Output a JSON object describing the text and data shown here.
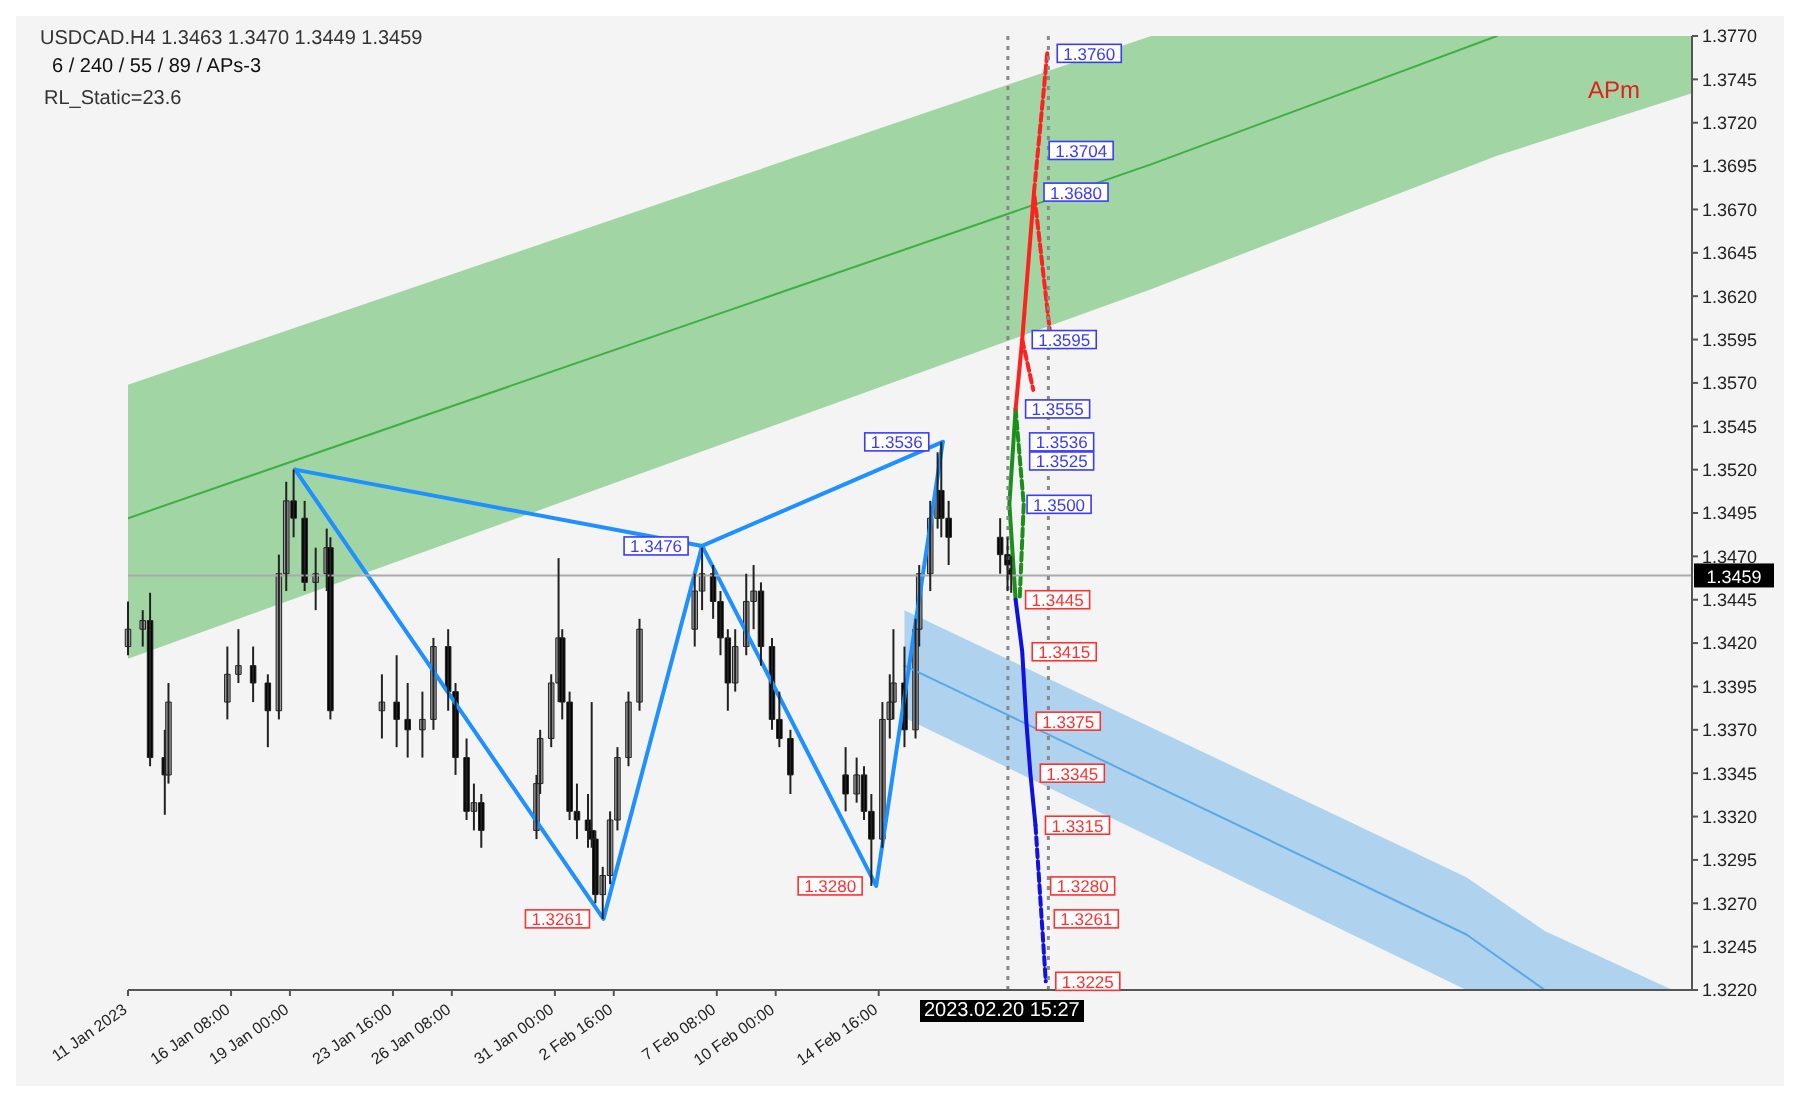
{
  "chart_data": {
    "type": "candlestick",
    "title": "USDCAD.H4  1.3463 1.3470 1.3449 1.3459",
    "subtitle": "6 / 240 / 55 / 89 / APs-3",
    "x": [
      "2023-01-11T16:00",
      "2023-01-12T08:00",
      "2023-01-12T16:00",
      "2023-01-13T08:00",
      "2023-01-13T12:00",
      "2023-01-16T04:00",
      "2023-01-16T16:00",
      "2023-01-17T08:00",
      "2023-01-18T00:00",
      "2023-01-18T12:00",
      "2023-01-18T20:00",
      "2023-01-19T04:00",
      "2023-01-19T16:00",
      "2023-01-20T04:00",
      "2023-01-20T16:00",
      "2023-01-20T20:00",
      "2023-01-23T04:00",
      "2023-01-23T20:00",
      "2023-01-24T08:00",
      "2023-01-25T00:00",
      "2023-01-25T12:00",
      "2023-01-26T04:00",
      "2023-01-26T12:00",
      "2023-01-27T00:00",
      "2023-01-27T08:00",
      "2023-01-27T16:00",
      "2023-01-30T04:00",
      "2023-01-30T08:00",
      "2023-01-30T20:00",
      "2023-01-31T04:00",
      "2023-01-31T08:00",
      "2023-01-31T16:00",
      "2023-02-01T00:00",
      "2023-02-01T12:00",
      "2023-02-01T16:00",
      "2023-02-01T20:00",
      "2023-02-02T04:00",
      "2023-02-02T12:00",
      "2023-02-02T20:00",
      "2023-02-03T08:00",
      "2023-02-03T20:00",
      "2023-02-06T08:00",
      "2023-02-06T16:00",
      "2023-02-07T04:00",
      "2023-02-07T12:00",
      "2023-02-07T20:00",
      "2023-02-08T04:00",
      "2023-02-08T16:00",
      "2023-02-09T00:00",
      "2023-02-09T08:00",
      "2023-02-09T20:00",
      "2023-02-10T04:00",
      "2023-02-10T16:00",
      "2023-02-13T04:00",
      "2023-02-13T16:00",
      "2023-02-14T00:00",
      "2023-02-14T08:00",
      "2023-02-14T20:00",
      "2023-02-15T04:00",
      "2023-02-15T08:00",
      "2023-02-15T20:00",
      "2023-02-16T08:00",
      "2023-02-16T12:00",
      "2023-02-17T00:00",
      "2023-02-17T08:00",
      "2023-02-17T12:00",
      "2023-02-17T20:00",
      "2023-02-20T04:00",
      "2023-02-20T12:00",
      "2023-02-20T16:00"
    ],
    "ohlc": [
      [
        1.3418,
        1.3444,
        1.3413,
        1.3428
      ],
      [
        1.3428,
        1.3439,
        1.3418,
        1.3433
      ],
      [
        1.3433,
        1.3449,
        1.3349,
        1.3354
      ],
      [
        1.3354,
        1.337,
        1.3321,
        1.3344
      ],
      [
        1.3344,
        1.3397,
        1.3339,
        1.3386
      ],
      [
        1.3386,
        1.3418,
        1.3376,
        1.3402
      ],
      [
        1.3402,
        1.3428,
        1.3397,
        1.3407
      ],
      [
        1.3407,
        1.3418,
        1.3386,
        1.3397
      ],
      [
        1.3397,
        1.3402,
        1.336,
        1.3381
      ],
      [
        1.3381,
        1.3471,
        1.3376,
        1.346
      ],
      [
        1.346,
        1.3513,
        1.345,
        1.3502
      ],
      [
        1.3502,
        1.352,
        1.3481,
        1.3492
      ],
      [
        1.3492,
        1.3502,
        1.345,
        1.3455
      ],
      [
        1.3455,
        1.3475,
        1.3439,
        1.346
      ],
      [
        1.346,
        1.3486,
        1.345,
        1.3475
      ],
      [
        1.3475,
        1.3481,
        1.3376,
        1.3381
      ],
      [
        1.3381,
        1.3402,
        1.3365,
        1.3386
      ],
      [
        1.3386,
        1.3413,
        1.336,
        1.3376
      ],
      [
        1.3376,
        1.3397,
        1.3354,
        1.337
      ],
      [
        1.337,
        1.3392,
        1.3354,
        1.3376
      ],
      [
        1.3376,
        1.3423,
        1.337,
        1.3418
      ],
      [
        1.3418,
        1.3428,
        1.3381,
        1.3392
      ],
      [
        1.3392,
        1.3397,
        1.3344,
        1.3354
      ],
      [
        1.3354,
        1.3365,
        1.3318,
        1.3323
      ],
      [
        1.3323,
        1.3339,
        1.3312,
        1.3328
      ],
      [
        1.3328,
        1.3333,
        1.3302,
        1.3312
      ],
      [
        1.3312,
        1.3344,
        1.3307,
        1.3339
      ],
      [
        1.3339,
        1.337,
        1.3333,
        1.3365
      ],
      [
        1.3365,
        1.3402,
        1.336,
        1.3397
      ],
      [
        1.3397,
        1.3469,
        1.3386,
        1.3423
      ],
      [
        1.3423,
        1.3428,
        1.3376,
        1.3386
      ],
      [
        1.3386,
        1.3392,
        1.3318,
        1.3323
      ],
      [
        1.3323,
        1.3339,
        1.3307,
        1.3318
      ],
      [
        1.3318,
        1.3333,
        1.3302,
        1.3312
      ],
      [
        1.3312,
        1.3386,
        1.3302,
        1.3307
      ],
      [
        1.3307,
        1.3312,
        1.327,
        1.3275
      ],
      [
        1.3275,
        1.3291,
        1.3261,
        1.3286
      ],
      [
        1.3286,
        1.3323,
        1.3281,
        1.3318
      ],
      [
        1.3318,
        1.336,
        1.3312,
        1.3354
      ],
      [
        1.3354,
        1.3392,
        1.3349,
        1.3386
      ],
      [
        1.3386,
        1.3434,
        1.3381,
        1.3428
      ],
      [
        1.3428,
        1.346,
        1.3418,
        1.345
      ],
      [
        1.345,
        1.3475,
        1.3439,
        1.346
      ],
      [
        1.346,
        1.3465,
        1.3434,
        1.3444
      ],
      [
        1.3444,
        1.345,
        1.3413,
        1.3423
      ],
      [
        1.3423,
        1.3428,
        1.3381,
        1.3397
      ],
      [
        1.3397,
        1.3428,
        1.3392,
        1.3418
      ],
      [
        1.3418,
        1.346,
        1.3413,
        1.3444
      ],
      [
        1.3444,
        1.3465,
        1.3428,
        1.345
      ],
      [
        1.345,
        1.3455,
        1.3407,
        1.3418
      ],
      [
        1.3418,
        1.3423,
        1.337,
        1.3376
      ],
      [
        1.3376,
        1.3392,
        1.336,
        1.3365
      ],
      [
        1.3365,
        1.337,
        1.3333,
        1.3344
      ],
      [
        1.3344,
        1.336,
        1.3323,
        1.3333
      ],
      [
        1.3333,
        1.3354,
        1.3328,
        1.3344
      ],
      [
        1.3344,
        1.3349,
        1.3318,
        1.3323
      ],
      [
        1.3323,
        1.3333,
        1.328,
        1.3307
      ],
      [
        1.3307,
        1.3386,
        1.3302,
        1.3376
      ],
      [
        1.3376,
        1.3402,
        1.3365,
        1.3386
      ],
      [
        1.3386,
        1.3428,
        1.3376,
        1.3397
      ],
      [
        1.3397,
        1.3418,
        1.336,
        1.337
      ],
      [
        1.337,
        1.3434,
        1.3365,
        1.3428
      ],
      [
        1.3428,
        1.3465,
        1.3418,
        1.346
      ],
      [
        1.346,
        1.3502,
        1.345,
        1.3492
      ],
      [
        1.3492,
        1.353,
        1.3486,
        1.3508
      ],
      [
        1.3508,
        1.3536,
        1.3481,
        1.3492
      ],
      [
        1.3492,
        1.3502,
        1.3465,
        1.3481
      ],
      [
        1.3481,
        1.3492,
        1.346,
        1.3471
      ],
      [
        1.3471,
        1.3481,
        1.345,
        1.3465
      ],
      [
        1.3463,
        1.347,
        1.3449,
        1.3459
      ]
    ],
    "series": [
      {
        "type": "line",
        "color": "#3cb043",
        "x": [
          "2023-01-11T16:00",
          "2023-02-27T00:00",
          "2023-03-14T16:00",
          "2023-03-23T12:00"
        ],
        "values": [
          1.3492,
          1.3696,
          1.377,
          null
        ],
        "lower": [
          1.3411,
          1.3624,
          1.3701,
          1.3737
        ],
        "upper": [
          1.3569,
          1.377,
          1.377,
          1.377
        ]
      },
      {
        "type": "line",
        "color": "#5aa8e8",
        "x": [
          "2023-02-15T20:00",
          "2023-03-13T06:48",
          "2023-03-16T20:00",
          "2023-03-22T14:48"
        ],
        "values": [
          1.3407,
          1.3252,
          1.322,
          null
        ],
        "lower": [
          1.3377,
          1.322,
          1.322,
          1.322
        ],
        "upper": [
          1.3439,
          1.3285,
          1.3254,
          1.322
        ]
      },
      {
        "type": "line",
        "color": "#1e90ff",
        "x": [
          "2023-01-19T05:36",
          "2023-02-02T04:48",
          "2023-02-06T16:00",
          "2023-02-14T13:12",
          "2023-02-17T13:36"
        ],
        "values": [
          1.352,
          1.3261,
          1.3476,
          1.328,
          1.3536
        ]
      },
      {
        "type": "line",
        "color": "#1e90ff",
        "x": [
          "2023-01-19T05:36",
          "2023-02-06T16:00",
          "2023-02-17T13:36"
        ],
        "values": [
          1.352,
          1.3476,
          1.3536
        ]
      },
      {
        "type": "line",
        "color": "#1a8f1a",
        "x": [
          "2023-02-20T20:48",
          "2023-02-20T14:00",
          "2023-02-20T20:48"
        ],
        "values": [
          1.3445,
          1.35,
          1.3555
        ]
      },
      {
        "type": "line",
        "color": "#1a8f1a",
        "line_style": "dashed",
        "x": [
          "2023-02-20T20:48",
          "2023-02-21T05:36",
          "2023-02-21T01:12"
        ],
        "values": [
          1.3555,
          1.35,
          1.3445
        ]
      },
      {
        "type": "line",
        "color": "#ff2020",
        "x": [
          "2023-02-20T20:48",
          "2023-02-21T04:00",
          "2023-02-21T16:48"
        ],
        "values": [
          1.3555,
          1.3595,
          1.368
        ]
      },
      {
        "type": "line",
        "color": "#ff2020",
        "line_style": "dashed",
        "x": [
          "2023-02-22T07:12",
          "2023-02-21T16:48",
          "2023-02-22T10:24"
        ],
        "values": [
          1.376,
          1.368,
          1.3598
        ]
      },
      {
        "type": "line",
        "color": "#ff2020",
        "line_style": "dashed",
        "x": [
          "2023-02-21T04:00",
          "2023-02-21T16:00"
        ],
        "values": [
          1.3595,
          1.3566
        ]
      },
      {
        "type": "line",
        "color": "#1010e0",
        "x": [
          "2023-02-20T20:48",
          "2023-02-21T04:00",
          "2023-02-21T08:24",
          "2023-02-21T12:48",
          "2023-02-21T18:24"
        ],
        "values": [
          1.3445,
          1.3415,
          1.3375,
          1.3345,
          1.3315
        ]
      },
      {
        "type": "line",
        "color": "#1010e0",
        "line_style": "dashed",
        "x": [
          "2023-02-21T18:24",
          "2023-02-22T05:36"
        ],
        "values": [
          1.3315,
          1.3225
        ]
      }
    ],
    "xlim": [
      "2023-01-11T16:00",
      "2023-03-23T12:00"
    ],
    "xticks": [
      {
        "value": "2023-01-11T16:00",
        "label": "11 Jan 2023"
      },
      {
        "value": "2023-01-16T08:00",
        "label": "16 Jan 08:00"
      },
      {
        "value": "2023-01-19T00:00",
        "label": "19 Jan 00:00"
      },
      {
        "value": "2023-01-23T16:00",
        "label": "23 Jan 16:00"
      },
      {
        "value": "2023-01-26T08:00",
        "label": "26 Jan 08:00"
      },
      {
        "value": "2023-01-31T00:00",
        "label": "31 Jan 00:00"
      },
      {
        "value": "2023-02-02T16:00",
        "label": "2 Feb 16:00"
      },
      {
        "value": "2023-02-07T08:00",
        "label": "7 Feb 08:00"
      },
      {
        "value": "2023-02-10T00:00",
        "label": "10 Feb 00:00"
      },
      {
        "value": "2023-02-14T16:00",
        "label": "14 Feb 16:00"
      }
    ],
    "ylim": [
      1.322,
      1.377
    ],
    "yticks": [
      {
        "value": 1.322,
        "label": "1.3220"
      },
      {
        "value": 1.3245,
        "label": "1.3245"
      },
      {
        "value": 1.327,
        "label": "1.3270"
      },
      {
        "value": 1.3295,
        "label": "1.3295"
      },
      {
        "value": 1.332,
        "label": "1.3320"
      },
      {
        "value": 1.3345,
        "label": "1.3345"
      },
      {
        "value": 1.337,
        "label": "1.3370"
      },
      {
        "value": 1.3395,
        "label": "1.3395"
      },
      {
        "value": 1.342,
        "label": "1.3420"
      },
      {
        "value": 1.3445,
        "label": "1.3445"
      },
      {
        "value": 1.347,
        "label": "1.3470"
      },
      {
        "value": 1.3495,
        "label": "1.3495"
      },
      {
        "value": 1.352,
        "label": "1.3520"
      },
      {
        "value": 1.3545,
        "label": "1.3545"
      },
      {
        "value": 1.357,
        "label": "1.3570"
      },
      {
        "value": 1.3595,
        "label": "1.3595"
      },
      {
        "value": 1.362,
        "label": "1.3620"
      },
      {
        "value": 1.3645,
        "label": "1.3645"
      },
      {
        "value": 1.367,
        "label": "1.3670"
      },
      {
        "value": 1.3695,
        "label": "1.3695"
      },
      {
        "value": 1.372,
        "label": "1.3720"
      },
      {
        "value": 1.3745,
        "label": "1.3745"
      },
      {
        "value": 1.377,
        "label": "1.3770"
      }
    ],
    "ref_lines": [
      {
        "axis": "y",
        "value": 1.3459,
        "label": "1.3459",
        "color": "#aaaaaa"
      },
      {
        "axis": "x",
        "value": "2023-02-20T12:24",
        "color": "#888888",
        "line_style": "dotted"
      },
      {
        "axis": "x",
        "value": "2023-02-22T08:24",
        "color": "#888888",
        "line_style": "dotted"
      }
    ],
    "annotations": [
      "RL_Static=23.6",
      "APm",
      "2023.02.20 15:27",
      {
        "text": "1.3536",
        "x": "2023-02-17T13:36",
        "y": 1.3536
      },
      {
        "text": "1.3476",
        "x": "2023-02-06T16:00",
        "y": 1.3476
      },
      {
        "text": "1.3280",
        "x": "2023-02-14T13:12",
        "y": 1.328
      },
      {
        "text": "1.3261",
        "x": "2023-02-02T04:48",
        "y": 1.3261
      },
      {
        "text": "1.3760",
        "x": "2023-02-22T07:12",
        "y": 1.376
      },
      {
        "text": "1.3704",
        "x": "2023-02-21T22:24",
        "y": 1.3704
      },
      {
        "text": "1.3680",
        "x": "2023-02-21T16:48",
        "y": 1.368
      },
      {
        "text": "1.3595",
        "x": "2023-02-21T04:00",
        "y": 1.3595
      },
      {
        "text": "1.3555",
        "x": "2023-02-20T20:48",
        "y": 1.3555
      },
      {
        "text": "1.3536",
        "x": "2023-02-21T01:12",
        "y": 1.3536
      },
      {
        "text": "1.3525",
        "x": "2023-02-21T01:12",
        "y": 1.3525
      },
      {
        "text": "1.3500",
        "x": "2023-02-20T22:24",
        "y": 1.35
      },
      {
        "text": "1.3445",
        "x": "2023-02-20T20:48",
        "y": 1.3445
      },
      {
        "text": "1.3415",
        "x": "2023-02-21T04:00",
        "y": 1.3415
      },
      {
        "text": "1.3375",
        "x": "2023-02-21T08:24",
        "y": 1.3375
      },
      {
        "text": "1.3345",
        "x": "2023-02-21T12:48",
        "y": 1.3345
      },
      {
        "text": "1.3315",
        "x": "2023-02-21T18:24",
        "y": 1.3315
      },
      {
        "text": "1.3280",
        "x": "2023-02-22T00:00",
        "y": 1.328
      },
      {
        "text": "1.3261",
        "x": "2023-02-22T04:00",
        "y": 1.3261
      },
      {
        "text": "1.3225",
        "x": "2023-02-22T05:36",
        "y": 1.3225
      }
    ],
    "grid": false
  }
}
